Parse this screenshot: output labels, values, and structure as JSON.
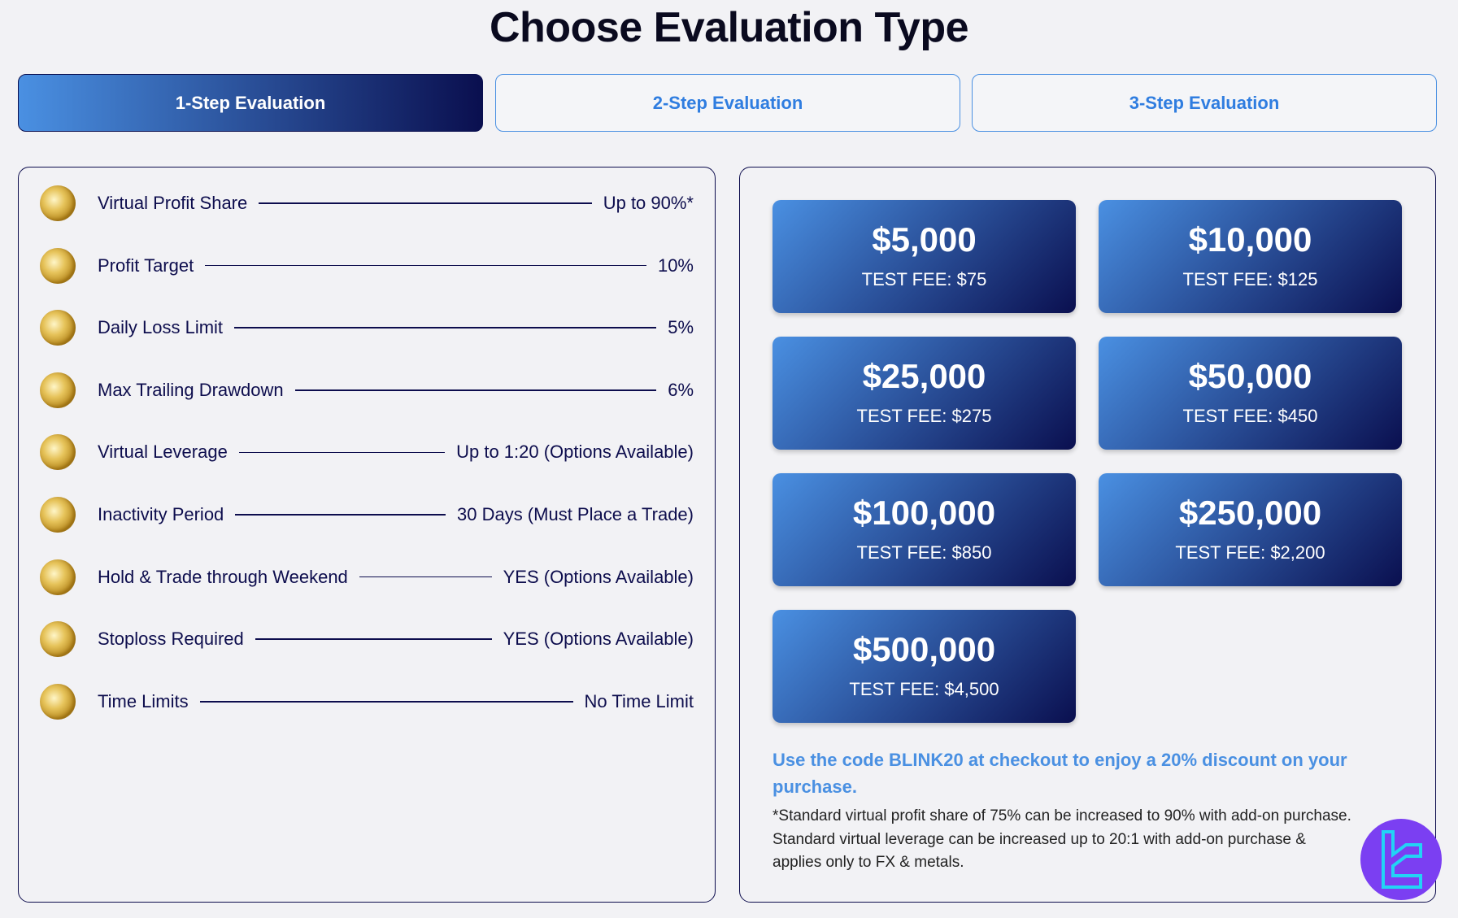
{
  "title": "Choose Evaluation Type",
  "tabs": [
    {
      "label": "1-Step Evaluation",
      "active": true
    },
    {
      "label": "2-Step Evaluation",
      "active": false
    },
    {
      "label": "3-Step Evaluation",
      "active": false
    }
  ],
  "features": [
    {
      "label": "Virtual Profit Share",
      "value": "Up to 90%*",
      "icon": "globe-icon"
    },
    {
      "label": "Profit Target",
      "value": "10%",
      "icon": "globe-icon"
    },
    {
      "label": "Daily Loss Limit",
      "value": "5%",
      "icon": "globe-icon"
    },
    {
      "label": "Max Trailing Drawdown",
      "value": "6%",
      "icon": "globe-icon"
    },
    {
      "label": "Virtual Leverage",
      "value": "Up to 1:20 (Options Available)",
      "icon": "globe-icon"
    },
    {
      "label": "Inactivity Period",
      "value": "30 Days (Must Place a Trade)",
      "icon": "globe-icon"
    },
    {
      "label": "Hold & Trade through Weekend",
      "value": "YES (Options Available)",
      "icon": "globe-icon"
    },
    {
      "label": "Stoploss Required",
      "value": "YES (Options Available)",
      "icon": "globe-icon"
    },
    {
      "label": "Time Limits",
      "value": "No Time Limit",
      "icon": "globe-icon"
    }
  ],
  "accounts": [
    {
      "amount": "$5,000",
      "fee": "TEST FEE: $75"
    },
    {
      "amount": "$10,000",
      "fee": "TEST FEE: $125"
    },
    {
      "amount": "$25,000",
      "fee": "TEST FEE: $275"
    },
    {
      "amount": "$50,000",
      "fee": "TEST FEE: $450"
    },
    {
      "amount": "$100,000",
      "fee": "TEST FEE: $850"
    },
    {
      "amount": "$250,000",
      "fee": "TEST FEE: $2,200"
    },
    {
      "amount": "$500,000",
      "fee": "TEST FEE: $4,500"
    }
  ],
  "promo": "Use the code BLINK20 at checkout to enjoy a 20% discount on your purchase.",
  "footnote": "*Standard virtual profit share of 75% can be increased to 90% with add-on purchase. Standard virtual leverage can be increased up to 20:1 with add-on purchase & applies only to FX & metals.",
  "colors": {
    "accent": "#4a90e2",
    "navy": "#0a0f4f",
    "logo_bg": "#7b3ff2",
    "logo_fg": "#22d3f5"
  }
}
